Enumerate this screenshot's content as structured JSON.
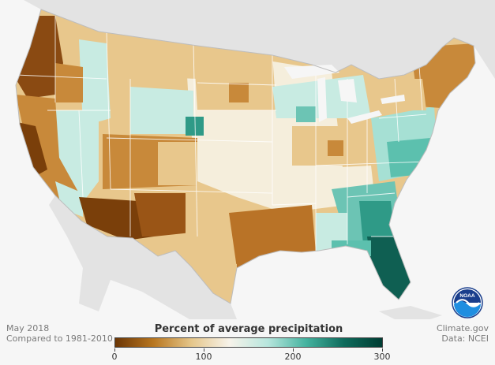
{
  "map": {
    "title": "Percent of average precipitation",
    "period": "May 2018",
    "baseline": "Compared to 1981-2010",
    "credit_site": "Climate.gov",
    "credit_data": "Data: NCEI",
    "logo_text": "NOAA",
    "colors": {
      "water": "#f6f6f6",
      "neighbor_land": "#e3e3e3",
      "very_dry": "#7a3f0a",
      "dry": "#c8893a",
      "slightly_dry": "#e8c78c",
      "near_normal": "#f5eedc",
      "slightly_wet": "#c8ebe2",
      "wet": "#5cc0ae",
      "very_wet": "#0f5f52"
    },
    "legend": {
      "gradient": [
        "#6b3606",
        "#b8761f",
        "#e5c68a",
        "#f7f3ea",
        "#b7e6dd",
        "#45b3a0",
        "#0e6b5c",
        "#003d33"
      ],
      "min": 0,
      "max": 300,
      "ticks": [
        {
          "value": 0,
          "label": "0"
        },
        {
          "value": 100,
          "label": "100"
        },
        {
          "value": 200,
          "label": "200"
        },
        {
          "value": 300,
          "label": "300"
        }
      ]
    },
    "regions": [
      {
        "name": "pacific-northwest-coast",
        "class": "very_dry"
      },
      {
        "name": "california-coast",
        "class": "very_dry"
      },
      {
        "name": "arizona-south",
        "class": "very_dry"
      },
      {
        "name": "california-interior",
        "class": "dry"
      },
      {
        "name": "nevada",
        "class": "slightly_wet"
      },
      {
        "name": "idaho",
        "class": "slightly_wet"
      },
      {
        "name": "montana",
        "class": "slightly_dry"
      },
      {
        "name": "colorado-utah",
        "class": "dry"
      },
      {
        "name": "wyoming",
        "class": "slightly_wet"
      },
      {
        "name": "nebraska-wet-spot",
        "class": "wet"
      },
      {
        "name": "new-mexico",
        "class": "dry"
      },
      {
        "name": "texas-plains",
        "class": "slightly_dry"
      },
      {
        "name": "east-texas-louisiana",
        "class": "dry"
      },
      {
        "name": "central-plains",
        "class": "near_normal"
      },
      {
        "name": "dakotas",
        "class": "slightly_dry"
      },
      {
        "name": "great-lakes",
        "class": "slightly_wet"
      },
      {
        "name": "ohio-valley",
        "class": "slightly_dry"
      },
      {
        "name": "mid-atlantic",
        "class": "wet"
      },
      {
        "name": "southeast-coast",
        "class": "wet"
      },
      {
        "name": "florida",
        "class": "very_wet"
      },
      {
        "name": "new-england",
        "class": "dry"
      },
      {
        "name": "tennessee-valley",
        "class": "near_normal"
      }
    ]
  }
}
